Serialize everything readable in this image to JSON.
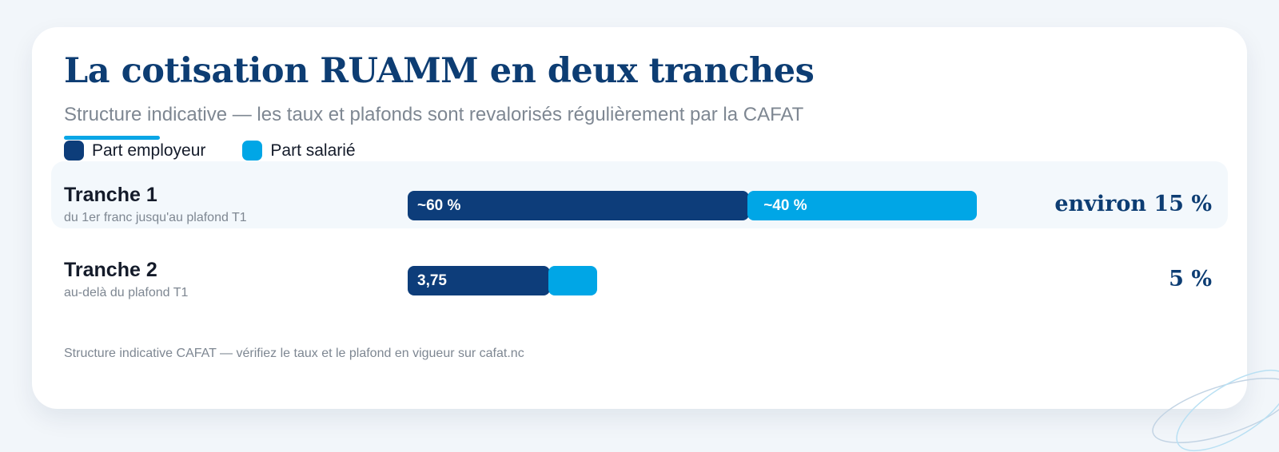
{
  "header": {
    "title": "La cotisation RUAMM en deux tranches",
    "subtitle": "Structure indicative — les taux et plafonds sont revalorisés régulièrement par la CAFAT"
  },
  "colors": {
    "employer": "#0d3d7a",
    "employee": "#00a6e6"
  },
  "chart_data": {
    "type": "bar",
    "stacked": true,
    "orientation": "horizontal",
    "legend": [
      {
        "name": "Part employeur",
        "color": "#0d3d7a"
      },
      {
        "name": "Part salarié",
        "color": "#00a6e6"
      }
    ],
    "categories": [
      {
        "name": "Tranche 1",
        "description": "du 1er franc jusqu'au plafond T1",
        "total_label": "environ 15 %",
        "total": 15,
        "employer": 9,
        "employee": 6,
        "employer_label": "~60 %",
        "employee_label": "~40 %"
      },
      {
        "name": "Tranche 2",
        "description": "au-delà du plafond T1",
        "total_label": "5 %",
        "total": 5,
        "employer": 3.75,
        "employee": 1.25,
        "employer_label": "3,75",
        "employee_label": ""
      }
    ],
    "xlim": [
      0,
      15
    ]
  },
  "footer": {
    "note": "Structure indicative CAFAT — vérifiez le taux et le plafond en vigueur sur cafat.nc"
  }
}
